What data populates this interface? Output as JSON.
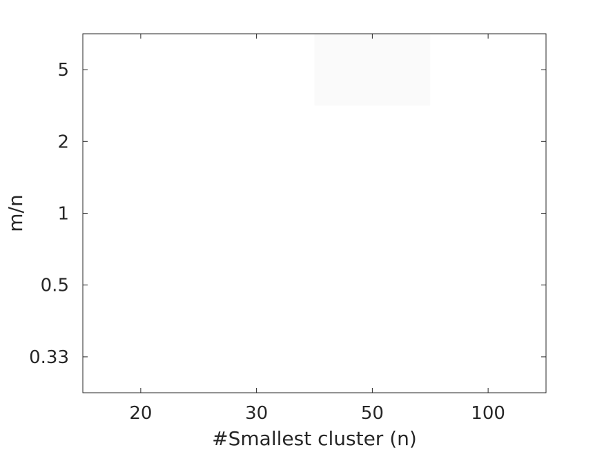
{
  "chart_data": {
    "type": "heatmap",
    "title": "",
    "xlabel": "#Smallest cluster (n)",
    "ylabel": "m/n",
    "x_categories": [
      "20",
      "30",
      "50",
      "100"
    ],
    "y_categories": [
      "5",
      "2",
      "1",
      "0.5",
      "0.33"
    ],
    "values": [
      [
        0,
        0,
        0.02,
        0
      ],
      [
        0,
        0,
        0,
        0
      ],
      [
        0,
        0,
        0,
        0
      ],
      [
        0,
        0,
        0,
        0
      ],
      [
        0,
        0,
        0,
        0
      ]
    ],
    "colormap": {
      "low": "#ffffff",
      "high": "#000000"
    },
    "grid": false,
    "legend": "none"
  }
}
